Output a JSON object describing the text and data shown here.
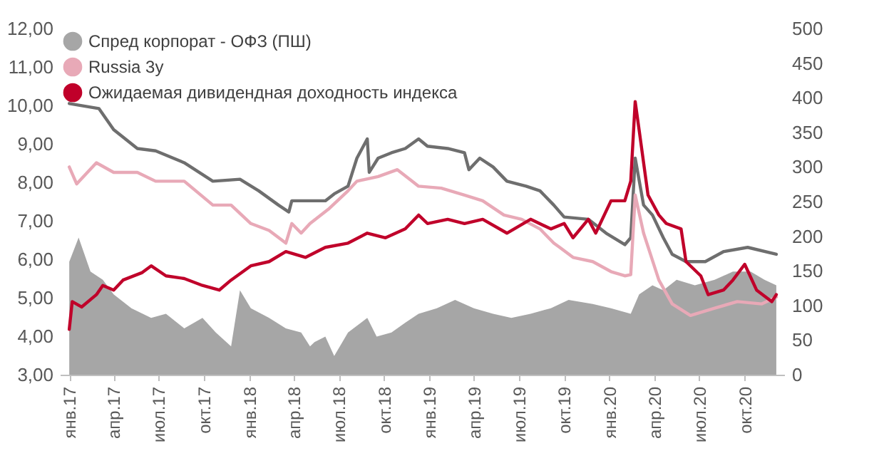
{
  "chart_data": {
    "type": "line",
    "legend": "top left",
    "xlim": [
      "2016-12-13",
      "2020-12-20"
    ],
    "xticks": [
      {
        "value": "2017-01-01",
        "label": "янв.17"
      },
      {
        "value": "2017-04-01",
        "label": "апр.17"
      },
      {
        "value": "2017-07-01",
        "label": "июл.17"
      },
      {
        "value": "2017-10-01",
        "label": "окт.17"
      },
      {
        "value": "2018-01-01",
        "label": "янв.18"
      },
      {
        "value": "2018-04-01",
        "label": "апр.18"
      },
      {
        "value": "2018-07-01",
        "label": "июл.18"
      },
      {
        "value": "2018-10-01",
        "label": "окт.18"
      },
      {
        "value": "2019-01-01",
        "label": "янв.19"
      },
      {
        "value": "2019-04-01",
        "label": "апр.19"
      },
      {
        "value": "2019-07-01",
        "label": "июл.19"
      },
      {
        "value": "2019-10-01",
        "label": "окт.19"
      },
      {
        "value": "2020-01-01",
        "label": "янв.20"
      },
      {
        "value": "2020-04-01",
        "label": "апр.20"
      },
      {
        "value": "2020-07-01",
        "label": "июл.20"
      },
      {
        "value": "2020-10-01",
        "label": "окт.20"
      }
    ],
    "ylim": [
      3,
      12
    ],
    "yticks": [
      {
        "value": 3,
        "label": "3,00"
      },
      {
        "value": 4,
        "label": "4,00"
      },
      {
        "value": 5,
        "label": "5,00"
      },
      {
        "value": 6,
        "label": "6,00"
      },
      {
        "value": 7,
        "label": "7,00"
      },
      {
        "value": 8,
        "label": "8,00"
      },
      {
        "value": 9,
        "label": "9,00"
      },
      {
        "value": 10,
        "label": "10,00"
      },
      {
        "value": 11,
        "label": "11,00"
      },
      {
        "value": 12,
        "label": "12,00"
      }
    ],
    "y2lim": [
      0,
      500
    ],
    "y2ticks": [
      0,
      50,
      100,
      150,
      200,
      250,
      300,
      350,
      400,
      450,
      500
    ],
    "series": [
      {
        "name": "Спред корпорат - ОФЗ (ПШ)",
        "type": "area",
        "axis": "y2",
        "color": "#a6a6a6",
        "x": [
          "2017-01-01",
          "2017-01-20",
          "2017-02-13",
          "2017-03-10",
          "2017-04-01",
          "2017-05-07",
          "2017-06-16",
          "2017-07-16",
          "2017-08-22",
          "2017-09-28",
          "2017-10-25",
          "2017-11-25",
          "2017-12-13",
          "2018-01-04",
          "2018-02-10",
          "2018-03-16",
          "2018-04-16",
          "2018-05-04",
          "2018-05-13",
          "2018-06-04",
          "2018-06-22",
          "2018-07-20",
          "2018-08-28",
          "2018-09-16",
          "2018-10-16",
          "2018-11-13",
          "2018-12-10",
          "2019-01-16",
          "2019-02-22",
          "2019-04-01",
          "2019-05-10",
          "2019-06-16",
          "2019-07-25",
          "2019-09-04",
          "2019-10-10",
          "2019-11-28",
          "2020-01-04",
          "2020-02-13",
          "2020-03-01",
          "2020-03-28",
          "2020-04-19",
          "2020-05-16",
          "2020-06-22",
          "2020-08-01",
          "2020-09-07",
          "2020-10-13",
          "2020-11-10",
          "2020-12-04"
        ],
        "values": [
          163,
          198,
          149,
          137,
          116,
          96,
          82,
          88,
          67,
          82,
          61,
          41,
          122,
          96,
          82,
          67,
          61,
          41,
          47,
          55,
          27,
          61,
          82,
          55,
          61,
          75,
          88,
          96,
          108,
          96,
          88,
          82,
          88,
          96,
          108,
          102,
          96,
          88,
          116,
          129,
          122,
          137,
          129,
          137,
          149,
          149,
          137,
          129
        ]
      },
      {
        "color": "#6e6e6e",
        "x": [
          "2017-01-01",
          "2017-03-02",
          "2017-04-01",
          "2017-05-19",
          "2017-06-25",
          "2017-08-22",
          "2017-10-19",
          "2017-12-13",
          "2018-01-20",
          "2018-03-01",
          "2018-03-22",
          "2018-03-28",
          "2018-05-13",
          "2018-06-04",
          "2018-06-22",
          "2018-07-20",
          "2018-08-07",
          "2018-08-28",
          "2018-09-01",
          "2018-09-19",
          "2018-10-16",
          "2018-11-13",
          "2018-12-10",
          "2018-12-28",
          "2019-02-07",
          "2019-03-13",
          "2019-03-22",
          "2019-04-13",
          "2019-05-10",
          "2019-06-07",
          "2019-07-16",
          "2019-08-13",
          "2019-09-10",
          "2019-10-01",
          "2019-11-19",
          "2019-12-25",
          "2020-02-01",
          "2020-02-13",
          "2020-02-22",
          "2020-03-10",
          "2020-03-28",
          "2020-04-19",
          "2020-05-07",
          "2020-06-04",
          "2020-07-13",
          "2020-08-19",
          "2020-10-07",
          "2020-12-04"
        ],
        "values": [
          10.05,
          9.92,
          9.37,
          8.88,
          8.82,
          8.51,
          8.03,
          8.08,
          7.78,
          7.41,
          7.23,
          7.52,
          7.52,
          7.52,
          7.7,
          7.9,
          8.63,
          9.13,
          8.26,
          8.63,
          8.77,
          8.88,
          9.13,
          8.94,
          8.88,
          8.77,
          8.33,
          8.63,
          8.4,
          8.03,
          7.9,
          7.78,
          7.41,
          7.1,
          7.04,
          6.68,
          6.38,
          6.56,
          8.63,
          7.41,
          7.15,
          6.56,
          6.13,
          5.94,
          5.94,
          6.2,
          6.31,
          6.13
        ]
      },
      {
        "name": "Russia 3y",
        "color": "#e8a9b7",
        "x": [
          "2017-01-01",
          "2017-01-16",
          "2017-02-25",
          "2017-04-01",
          "2017-05-19",
          "2017-06-25",
          "2017-08-22",
          "2017-10-19",
          "2017-11-25",
          "2018-01-04",
          "2018-02-10",
          "2018-03-16",
          "2018-03-28",
          "2018-04-16",
          "2018-05-04",
          "2018-06-10",
          "2018-07-20",
          "2018-08-07",
          "2018-09-19",
          "2018-10-28",
          "2018-12-10",
          "2019-01-25",
          "2019-03-13",
          "2019-04-19",
          "2019-06-01",
          "2019-07-07",
          "2019-08-13",
          "2019-09-10",
          "2019-09-22",
          "2019-10-19",
          "2019-11-28",
          "2020-01-04",
          "2020-02-01",
          "2020-02-13",
          "2020-02-22",
          "2020-03-10",
          "2020-04-10",
          "2020-05-07",
          "2020-06-13",
          "2020-08-01",
          "2020-09-16",
          "2020-11-04",
          "2020-12-04"
        ],
        "values": [
          8.4,
          7.96,
          8.51,
          8.26,
          8.26,
          8.03,
          8.03,
          7.41,
          7.41,
          6.93,
          6.75,
          6.42,
          6.93,
          6.68,
          6.93,
          7.3,
          7.78,
          8.03,
          8.15,
          8.33,
          7.9,
          7.85,
          7.67,
          7.52,
          7.15,
          7.04,
          6.79,
          6.42,
          6.31,
          6.05,
          5.94,
          5.68,
          5.57,
          5.6,
          7.67,
          6.68,
          5.46,
          4.84,
          4.54,
          4.73,
          4.9,
          4.84,
          5.02
        ]
      },
      {
        "name": "Ожидаемая дивидендная доходность индекса",
        "color": "#c0002a",
        "x": [
          "2017-01-01",
          "2017-01-07",
          "2017-01-26",
          "2017-02-25",
          "2017-03-10",
          "2017-04-01",
          "2017-04-20",
          "2017-05-28",
          "2017-06-16",
          "2017-07-16",
          "2017-08-22",
          "2017-09-28",
          "2017-11-01",
          "2017-11-25",
          "2018-01-04",
          "2018-02-10",
          "2018-03-16",
          "2018-04-25",
          "2018-06-04",
          "2018-07-20",
          "2018-08-28",
          "2018-10-04",
          "2018-11-13",
          "2018-12-10",
          "2018-12-28",
          "2019-02-07",
          "2019-03-13",
          "2019-04-19",
          "2019-06-07",
          "2019-07-25",
          "2019-09-04",
          "2019-10-01",
          "2019-10-19",
          "2019-11-19",
          "2019-12-04",
          "2020-01-04",
          "2020-02-01",
          "2020-02-13",
          "2020-02-22",
          "2020-03-01",
          "2020-03-19",
          "2020-04-10",
          "2020-04-25",
          "2020-05-25",
          "2020-06-04",
          "2020-07-04",
          "2020-07-19",
          "2020-08-19",
          "2020-09-07",
          "2020-10-01",
          "2020-10-25",
          "2020-11-25",
          "2020-12-04"
        ],
        "values": [
          4.18,
          4.9,
          4.76,
          5.08,
          5.32,
          5.2,
          5.46,
          5.65,
          5.83,
          5.57,
          5.5,
          5.32,
          5.2,
          5.46,
          5.83,
          5.94,
          6.2,
          6.05,
          6.31,
          6.42,
          6.68,
          6.56,
          6.79,
          7.15,
          6.93,
          7.04,
          6.93,
          7.04,
          6.68,
          7.04,
          6.79,
          6.93,
          6.56,
          7.04,
          6.68,
          7.52,
          7.52,
          8.03,
          10.1,
          9.36,
          7.67,
          7.15,
          6.93,
          6.79,
          5.94,
          5.57,
          5.08,
          5.2,
          5.46,
          5.87,
          5.2,
          4.9,
          5.08
        ]
      }
    ]
  }
}
